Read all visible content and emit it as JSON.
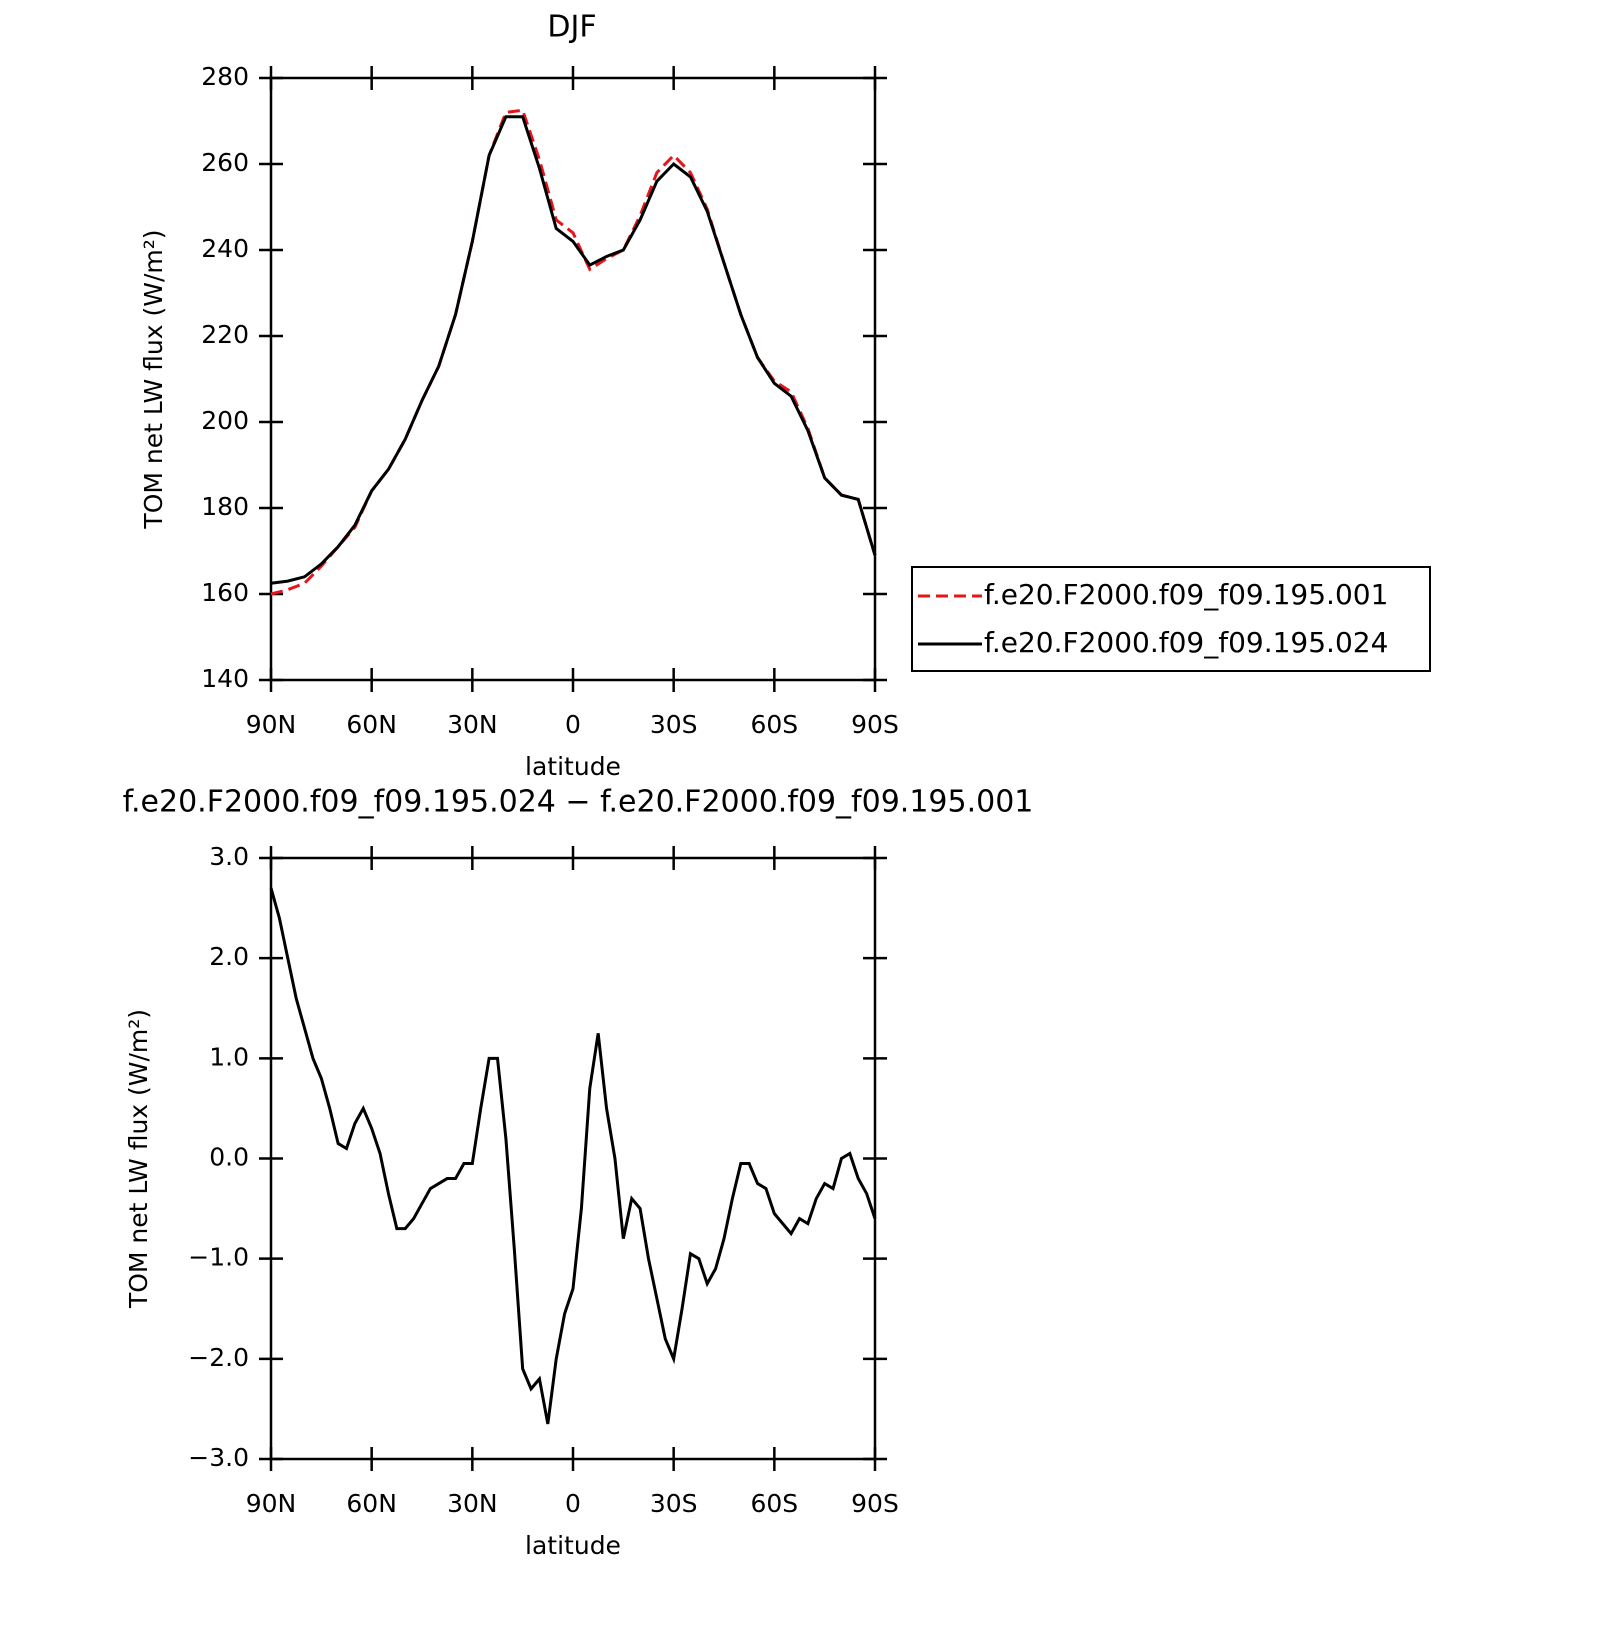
{
  "chart_data": [
    {
      "type": "line",
      "title": "DJF",
      "x_label": "latitude",
      "y_label": "TOM net LW flux (W/m²)",
      "x": [
        90,
        85,
        80,
        75,
        70,
        65,
        60,
        55,
        50,
        45,
        40,
        35,
        30,
        25,
        20,
        15,
        10,
        5,
        0,
        -5,
        -10,
        -15,
        -20,
        -25,
        -30,
        -35,
        -40,
        -45,
        -50,
        -55,
        -60,
        -65,
        -70,
        -75,
        -80,
        -85,
        -90
      ],
      "series": [
        {
          "name": "f.e20.F2000.f09_f09.195.001",
          "color": "#e8141a",
          "line_style": "dashed",
          "values": [
            160,
            161,
            162.5,
            166.5,
            171,
            175.5,
            184,
            189,
            196,
            205,
            213,
            225,
            242,
            262,
            272,
            272.5,
            261,
            247,
            244,
            235.5,
            238,
            240,
            248,
            258,
            262,
            258,
            249.5,
            237,
            225,
            215,
            209.5,
            207,
            198.5,
            187,
            183,
            182,
            169
          ]
        },
        {
          "name": "f.e20.F2000.f09_f09.195.024",
          "color": "#000000",
          "line_style": "solid",
          "values": [
            162.5,
            163,
            164,
            167,
            171,
            176,
            184,
            189,
            196,
            205,
            213,
            225,
            242,
            262,
            271,
            271,
            259,
            245,
            242,
            236.5,
            238.5,
            240,
            247,
            256,
            260,
            257,
            249,
            237,
            225,
            215,
            209,
            206,
            198,
            187,
            183,
            182,
            169
          ]
        }
      ],
      "xlim": [
        90,
        -90
      ],
      "xticks": [
        {
          "value": 90,
          "label": "90N"
        },
        {
          "value": 60,
          "label": "60N"
        },
        {
          "value": 30,
          "label": "30N"
        },
        0,
        {
          "value": -30,
          "label": "30S"
        },
        {
          "value": -60,
          "label": "60S"
        },
        {
          "value": -90,
          "label": "90S"
        }
      ],
      "ylim": [
        140,
        280
      ],
      "yticks": [
        140,
        160,
        180,
        200,
        220,
        240,
        260,
        280
      ],
      "legend": "right"
    },
    {
      "type": "line",
      "title": "f.e20.F2000.f09_f09.195.024 − f.e20.F2000.f09_f09.195.001",
      "x_label": "latitude",
      "y_label": "TOM net LW flux (W/m²)",
      "x": [
        90,
        87.5,
        85,
        82.5,
        80,
        77.5,
        75,
        72.5,
        70,
        67.5,
        65,
        62.5,
        60,
        57.5,
        55,
        52.5,
        50,
        47.5,
        45,
        42.5,
        40,
        37.5,
        35,
        32.5,
        30,
        27.5,
        25,
        22.5,
        20,
        17.5,
        15,
        12.5,
        10,
        7.5,
        5,
        2.5,
        0,
        -2.5,
        -5,
        -7.5,
        -10,
        -12.5,
        -15,
        -17.5,
        -20,
        -22.5,
        -25,
        -27.5,
        -30,
        -32.5,
        -35,
        -37.5,
        -40,
        -42.5,
        -45,
        -47.5,
        -50,
        -52.5,
        -55,
        -57.5,
        -60,
        -62.5,
        -65,
        -67.5,
        -70,
        -72.5,
        -75,
        -77.5,
        -80,
        -82.5,
        -85,
        -87.5,
        -90
      ],
      "series": [
        {
          "color": "#000000",
          "line_style": "solid",
          "values": [
            2.7,
            2.4,
            2.0,
            1.6,
            1.3,
            1.0,
            0.8,
            0.5,
            0.15,
            0.1,
            0.35,
            0.5,
            0.3,
            0.05,
            -0.35,
            -0.7,
            -0.7,
            -0.6,
            -0.45,
            -0.3,
            -0.25,
            -0.2,
            -0.2,
            -0.05,
            -0.05,
            0.5,
            1.0,
            1.0,
            0.2,
            -0.9,
            -2.1,
            -2.3,
            -2.2,
            -2.65,
            -2.0,
            -1.55,
            -1.3,
            -0.5,
            0.7,
            1.25,
            0.5,
            0.0,
            -0.8,
            -0.4,
            -0.5,
            -1.0,
            -1.4,
            -1.8,
            -2.0,
            -1.5,
            -0.95,
            -1.0,
            -1.25,
            -1.1,
            -0.8,
            -0.4,
            -0.05,
            -0.05,
            -0.25,
            -0.3,
            -0.55,
            -0.65,
            -0.75,
            -0.6,
            -0.65,
            -0.4,
            -0.25,
            -0.3,
            0.0,
            0.05,
            -0.2,
            -0.35,
            -0.6
          ]
        }
      ],
      "xlim": [
        90,
        -90
      ],
      "xticks": [
        {
          "value": 90,
          "label": "90N"
        },
        {
          "value": 60,
          "label": "60N"
        },
        {
          "value": 30,
          "label": "30N"
        },
        0,
        {
          "value": -30,
          "label": "30S"
        },
        {
          "value": -60,
          "label": "60S"
        },
        {
          "value": -90,
          "label": "90S"
        }
      ],
      "ylim": [
        -3,
        3
      ],
      "yticks": [
        {
          "value": -3,
          "label": "−3.0"
        },
        {
          "value": -2,
          "label": "−2.0"
        },
        {
          "value": -1,
          "label": "−1.0"
        },
        {
          "value": 0,
          "label": "0.0"
        },
        {
          "value": 1,
          "label": "1.0"
        },
        {
          "value": 2,
          "label": "2.0"
        },
        {
          "value": 3,
          "label": "3.0"
        }
      ]
    }
  ]
}
